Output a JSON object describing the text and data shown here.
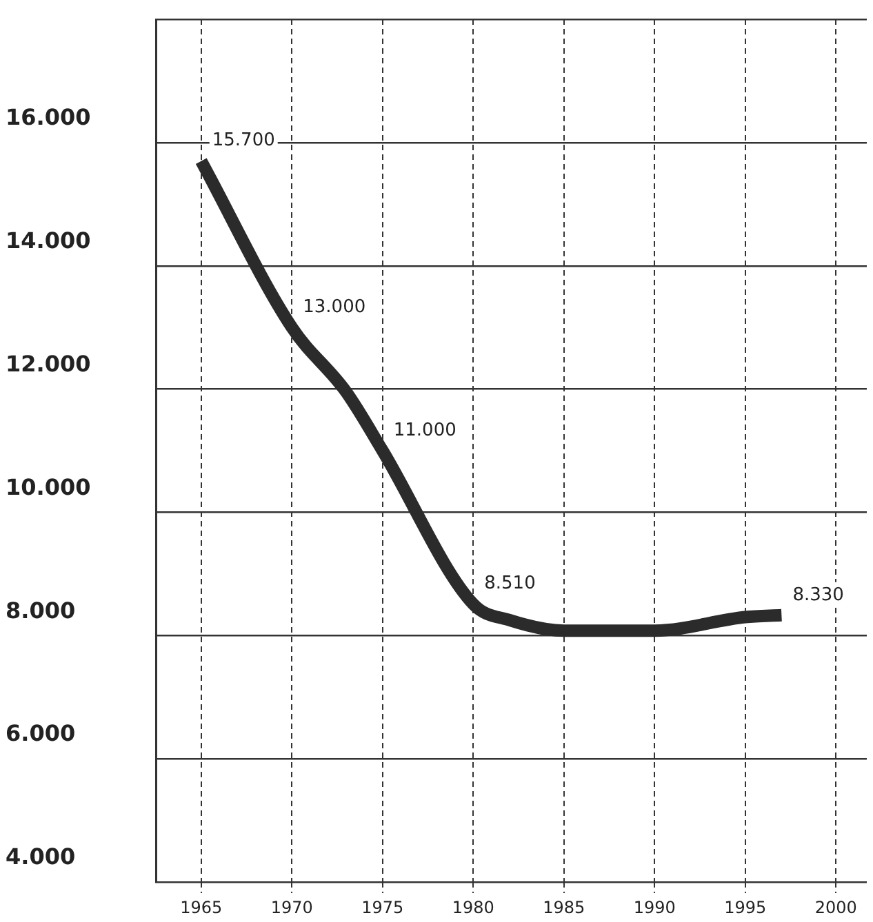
{
  "chart_data": {
    "type": "line",
    "x": [
      1965,
      1970,
      1973,
      1975,
      1980,
      1982,
      1985,
      1990,
      1995,
      1997
    ],
    "series": [
      {
        "color": "#2b2b2b",
        "values": [
          15700,
          13000,
          11950,
          11000,
          8510,
          8250,
          8080,
          8080,
          8300,
          8330
        ],
        "value_labels": [
          "15.700",
          "13.000",
          null,
          "11.000",
          "8.510",
          null,
          null,
          null,
          null,
          "8.330"
        ]
      }
    ],
    "xlim": [
      1962.5,
      2001.7
    ],
    "xticks": [
      1965,
      1970,
      1975,
      1980,
      1985,
      1990,
      1995,
      2000
    ],
    "ylim": [
      4000,
      18000
    ],
    "yticks": [
      {
        "value": 4000,
        "label": "4.000"
      },
      {
        "value": 6000,
        "label": "6.000"
      },
      {
        "value": 8000,
        "label": "8.000"
      },
      {
        "value": 10000,
        "label": "10.000"
      },
      {
        "value": 12000,
        "label": "12.000"
      },
      {
        "value": 14000,
        "label": "14.000"
      },
      {
        "value": 16000,
        "label": "16.000"
      },
      {
        "value": 18000,
        "label": null
      }
    ],
    "grid": true,
    "legend": false,
    "marker": "none",
    "line_style": "solid"
  }
}
